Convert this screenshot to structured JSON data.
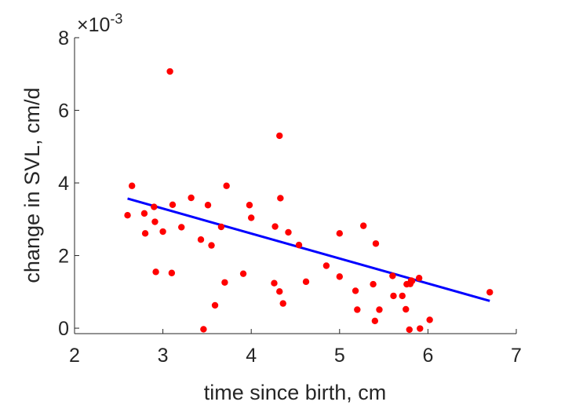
{
  "chart_data": {
    "type": "scatter",
    "xlabel": "time since birth, cm",
    "ylabel": "change in SVL, cm/d",
    "xlim": [
      2,
      7
    ],
    "ylim": [
      -0.00015,
      0.008
    ],
    "xticks": [
      2,
      3,
      4,
      5,
      6,
      7
    ],
    "xtick_labels": [
      "2",
      "3",
      "4",
      "5",
      "6",
      "7"
    ],
    "yticks": [
      0,
      0.002,
      0.004,
      0.006,
      0.008
    ],
    "ytick_labels": [
      "0",
      "2",
      "4",
      "6",
      "8"
    ],
    "y_exponent": {
      "base": "×10",
      "power": "-3"
    },
    "grid": false,
    "series": [
      {
        "kind": "points",
        "color": "#ff0000",
        "points": [
          [
            2.6,
            0.00311
          ],
          [
            2.65,
            0.00392
          ],
          [
            2.79,
            0.00316
          ],
          [
            2.8,
            0.00261
          ],
          [
            2.9,
            0.00334
          ],
          [
            2.91,
            0.00293
          ],
          [
            2.92,
            0.00155
          ],
          [
            3.0,
            0.00266
          ],
          [
            3.08,
            0.00707
          ],
          [
            3.1,
            0.00152
          ],
          [
            3.11,
            0.0034
          ],
          [
            3.21,
            0.00278
          ],
          [
            3.32,
            0.00359
          ],
          [
            3.43,
            0.00244
          ],
          [
            3.46,
            -3e-05
          ],
          [
            3.51,
            0.00339
          ],
          [
            3.55,
            0.00228
          ],
          [
            3.59,
            0.00063
          ],
          [
            3.66,
            0.00279
          ],
          [
            3.7,
            0.00126
          ],
          [
            3.72,
            0.00392
          ],
          [
            3.91,
            0.0015
          ],
          [
            3.98,
            0.00339
          ],
          [
            4.0,
            0.00304
          ],
          [
            4.26,
            0.00124
          ],
          [
            4.27,
            0.0028
          ],
          [
            4.32,
            0.0053
          ],
          [
            4.32,
            0.00101
          ],
          [
            4.33,
            0.00358
          ],
          [
            4.36,
            0.00068
          ],
          [
            4.42,
            0.00264
          ],
          [
            4.54,
            0.00229
          ],
          [
            4.62,
            0.00128
          ],
          [
            4.85,
            0.00172
          ],
          [
            5.0,
            0.00261
          ],
          [
            5.0,
            0.00142
          ],
          [
            5.18,
            0.00103
          ],
          [
            5.2,
            0.00051
          ],
          [
            5.27,
            0.00282
          ],
          [
            5.38,
            0.00121
          ],
          [
            5.4,
            0.0002
          ],
          [
            5.41,
            0.00233
          ],
          [
            5.45,
            0.00051
          ],
          [
            5.6,
            0.00144
          ],
          [
            5.61,
            0.00089
          ],
          [
            5.71,
            0.00089
          ],
          [
            5.75,
            0.00052
          ],
          [
            5.76,
            0.00121
          ],
          [
            5.79,
            -4e-05
          ],
          [
            5.8,
            0.00122
          ],
          [
            5.81,
            0.00131
          ],
          [
            5.82,
            0.0013
          ],
          [
            5.9,
            0.00138
          ],
          [
            5.91,
            -1e-05
          ],
          [
            6.02,
            0.00023
          ],
          [
            6.7,
            0.00099
          ]
        ]
      },
      {
        "kind": "fit-line",
        "color": "#0000ff",
        "points": [
          [
            2.6,
            0.00357
          ],
          [
            6.7,
            0.00075
          ]
        ]
      }
    ]
  }
}
